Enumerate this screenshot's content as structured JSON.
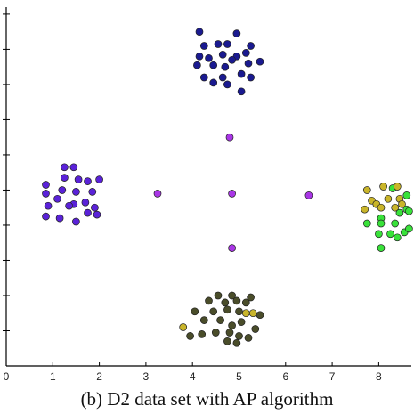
{
  "chart_data": {
    "type": "scatter",
    "caption": "(b) D2 data set with AP algorithm",
    "title": "",
    "xlabel": "",
    "ylabel": "",
    "xlim": [
      0,
      8.7
    ],
    "ylim": [
      0,
      10.2
    ],
    "x_ticks": [
      0,
      1,
      2,
      3,
      4,
      5,
      6,
      7,
      8
    ],
    "y_ticks": [
      1,
      2,
      3,
      4,
      5,
      6,
      7,
      8,
      9,
      10
    ],
    "y_tick_labels_visible": false,
    "grid": false,
    "legend": "none",
    "series": [
      {
        "color": "#1a1a90",
        "points": [
          [
            4.15,
            9.5
          ],
          [
            4.25,
            9.1
          ],
          [
            4.55,
            9.15
          ],
          [
            4.75,
            9.15
          ],
          [
            4.95,
            9.45
          ],
          [
            5.25,
            9.1
          ],
          [
            4.15,
            8.8
          ],
          [
            4.35,
            8.75
          ],
          [
            4.65,
            8.85
          ],
          [
            4.95,
            8.8
          ],
          [
            5.15,
            8.9
          ],
          [
            5.45,
            8.65
          ],
          [
            4.1,
            8.55
          ],
          [
            4.45,
            8.55
          ],
          [
            4.7,
            8.5
          ],
          [
            4.85,
            8.7
          ],
          [
            5.2,
            8.6
          ],
          [
            4.25,
            8.2
          ],
          [
            4.65,
            8.2
          ],
          [
            5.05,
            8.3
          ],
          [
            5.25,
            8.2
          ],
          [
            4.45,
            8.05
          ],
          [
            4.75,
            8.0
          ],
          [
            5.05,
            7.8
          ]
        ]
      },
      {
        "color": "#5a22d8",
        "points": [
          [
            1.25,
            5.65
          ],
          [
            1.45,
            5.65
          ],
          [
            0.85,
            5.15
          ],
          [
            1.25,
            5.35
          ],
          [
            1.55,
            5.3
          ],
          [
            1.75,
            5.25
          ],
          [
            2.0,
            5.3
          ],
          [
            0.85,
            4.9
          ],
          [
            1.2,
            5.0
          ],
          [
            1.5,
            4.95
          ],
          [
            1.85,
            4.95
          ],
          [
            0.9,
            4.55
          ],
          [
            1.1,
            4.75
          ],
          [
            1.45,
            4.6
          ],
          [
            1.7,
            4.65
          ],
          [
            1.9,
            4.5
          ],
          [
            0.85,
            4.25
          ],
          [
            1.15,
            4.2
          ],
          [
            1.5,
            4.1
          ],
          [
            1.75,
            4.35
          ],
          [
            1.95,
            4.3
          ],
          [
            1.35,
            4.55
          ]
        ]
      },
      {
        "color": "#a936e6",
        "points": [
          [
            4.8,
            6.5
          ],
          [
            3.25,
            4.9
          ],
          [
            4.85,
            4.9
          ],
          [
            6.5,
            4.85
          ],
          [
            4.85,
            3.35
          ]
        ]
      },
      {
        "color": "#39e23a",
        "points": [
          [
            8.3,
            5.05
          ],
          [
            8.6,
            4.85
          ],
          [
            8.6,
            4.45
          ],
          [
            8.45,
            4.35
          ],
          [
            8.65,
            4.4
          ],
          [
            8.05,
            4.2
          ],
          [
            7.75,
            4.05
          ],
          [
            8.35,
            4.05
          ],
          [
            8.05,
            4.05
          ],
          [
            8.25,
            3.75
          ],
          [
            8.55,
            3.8
          ],
          [
            8.0,
            3.75
          ],
          [
            8.65,
            3.9
          ],
          [
            8.4,
            3.65
          ],
          [
            8.05,
            3.35
          ]
        ]
      },
      {
        "color": "#c9b52a",
        "points": [
          [
            7.75,
            5.0
          ],
          [
            8.1,
            5.1
          ],
          [
            8.4,
            5.1
          ],
          [
            7.85,
            4.7
          ],
          [
            7.95,
            4.6
          ],
          [
            8.2,
            4.75
          ],
          [
            8.45,
            4.75
          ],
          [
            7.7,
            4.45
          ],
          [
            8.05,
            4.5
          ],
          [
            8.35,
            4.5
          ],
          [
            8.5,
            4.6
          ]
        ]
      },
      {
        "color": "#c9b52a",
        "points": [
          [
            3.8,
            1.1
          ],
          [
            5.3,
            1.5
          ],
          [
            5.15,
            1.5
          ]
        ]
      },
      {
        "color": "#4a4d2a",
        "points": [
          [
            4.55,
            2.0
          ],
          [
            4.85,
            2.0
          ],
          [
            5.25,
            1.95
          ],
          [
            4.35,
            1.85
          ],
          [
            4.7,
            1.8
          ],
          [
            4.95,
            1.85
          ],
          [
            5.15,
            1.8
          ],
          [
            4.05,
            1.55
          ],
          [
            4.45,
            1.55
          ],
          [
            4.75,
            1.6
          ],
          [
            5.0,
            1.55
          ],
          [
            5.45,
            1.45
          ],
          [
            4.25,
            1.3
          ],
          [
            4.6,
            1.3
          ],
          [
            4.85,
            1.15
          ],
          [
            5.05,
            1.25
          ],
          [
            4.2,
            0.9
          ],
          [
            4.5,
            0.95
          ],
          [
            4.8,
            0.95
          ],
          [
            5.0,
            0.85
          ],
          [
            5.2,
            0.8
          ],
          [
            4.95,
            0.65
          ],
          [
            3.95,
            0.85
          ],
          [
            4.75,
            0.7
          ],
          [
            5.35,
            1.05
          ]
        ]
      }
    ]
  }
}
